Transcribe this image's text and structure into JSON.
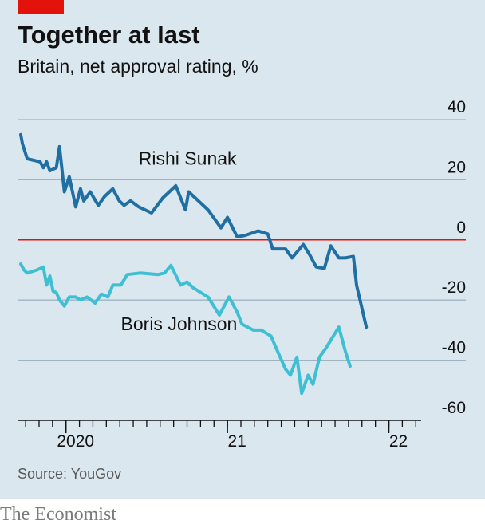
{
  "brand": {
    "accent_color": "#e3120b",
    "name": "The Economist"
  },
  "source": "Source: YouGov",
  "chart_data": {
    "type": "line",
    "title": "Together at last",
    "subtitle": "Britain, net approval rating, %",
    "xlabel": "",
    "ylabel": "",
    "ylim": [
      -60,
      40
    ],
    "yticks": [
      40,
      20,
      0,
      -20,
      -40,
      -60
    ],
    "xlim": [
      2019.7,
      2022.2
    ],
    "xticks": [
      {
        "x": 2020,
        "label": "2020"
      },
      {
        "x": 2021,
        "label": "21"
      },
      {
        "x": 2022,
        "label": "22"
      }
    ],
    "grid": true,
    "zero_line_color": "#e3120b",
    "series": [
      {
        "name": "Rishi Sunak",
        "color": "#1f6fa3",
        "points": [
          [
            2019.72,
            35
          ],
          [
            2019.73,
            32
          ],
          [
            2019.76,
            27
          ],
          [
            2019.84,
            26
          ],
          [
            2019.86,
            24
          ],
          [
            2019.88,
            26
          ],
          [
            2019.9,
            23
          ],
          [
            2019.92,
            23.5
          ],
          [
            2019.94,
            24
          ],
          [
            2019.96,
            31
          ],
          [
            2019.99,
            16
          ],
          [
            2020.02,
            21
          ],
          [
            2020.06,
            11
          ],
          [
            2020.09,
            17
          ],
          [
            2020.11,
            13
          ],
          [
            2020.15,
            16
          ],
          [
            2020.2,
            11.5
          ],
          [
            2020.24,
            14.5
          ],
          [
            2020.29,
            17
          ],
          [
            2020.33,
            13
          ],
          [
            2020.36,
            11.5
          ],
          [
            2020.4,
            13
          ],
          [
            2020.45,
            11
          ],
          [
            2020.53,
            9
          ],
          [
            2020.6,
            14
          ],
          [
            2020.68,
            18
          ],
          [
            2020.71,
            14
          ],
          [
            2020.74,
            10
          ],
          [
            2020.76,
            16
          ],
          [
            2020.8,
            14
          ],
          [
            2020.88,
            10
          ],
          [
            2020.96,
            4
          ],
          [
            2021.0,
            7.5
          ],
          [
            2021.06,
            1
          ],
          [
            2021.11,
            1.5
          ],
          [
            2021.19,
            3
          ],
          [
            2021.25,
            2
          ],
          [
            2021.28,
            -3
          ],
          [
            2021.36,
            -3
          ],
          [
            2021.4,
            -6
          ],
          [
            2021.47,
            -1.5
          ],
          [
            2021.51,
            -5
          ],
          [
            2021.55,
            -9
          ],
          [
            2021.6,
            -9.5
          ],
          [
            2021.64,
            -2
          ],
          [
            2021.69,
            -6
          ],
          [
            2021.73,
            -6
          ],
          [
            2021.78,
            -5.5
          ],
          [
            2021.8,
            -15
          ],
          [
            2021.86,
            -29
          ]
        ]
      },
      {
        "name": "Boris Johnson",
        "color": "#3ebfd4",
        "points": [
          [
            2019.72,
            -8
          ],
          [
            2019.74,
            -10
          ],
          [
            2019.76,
            -11
          ],
          [
            2019.82,
            -10
          ],
          [
            2019.86,
            -9
          ],
          [
            2019.88,
            -15
          ],
          [
            2019.9,
            -12
          ],
          [
            2019.92,
            -17
          ],
          [
            2019.94,
            -17.5
          ],
          [
            2019.96,
            -20
          ],
          [
            2019.99,
            -22
          ],
          [
            2020.02,
            -19
          ],
          [
            2020.06,
            -19
          ],
          [
            2020.09,
            -20
          ],
          [
            2020.13,
            -19
          ],
          [
            2020.18,
            -21
          ],
          [
            2020.22,
            -18
          ],
          [
            2020.26,
            -19
          ],
          [
            2020.29,
            -15
          ],
          [
            2020.34,
            -15
          ],
          [
            2020.38,
            -11.5
          ],
          [
            2020.46,
            -11
          ],
          [
            2020.57,
            -11.5
          ],
          [
            2020.61,
            -11
          ],
          [
            2020.65,
            -8.5
          ],
          [
            2020.71,
            -15
          ],
          [
            2020.75,
            -14
          ],
          [
            2020.79,
            -16
          ],
          [
            2020.88,
            -19
          ],
          [
            2020.95,
            -25
          ],
          [
            2021.01,
            -19
          ],
          [
            2021.06,
            -24
          ],
          [
            2021.09,
            -28
          ],
          [
            2021.16,
            -30
          ],
          [
            2021.21,
            -30
          ],
          [
            2021.27,
            -32
          ],
          [
            2021.31,
            -37
          ],
          [
            2021.36,
            -43
          ],
          [
            2021.39,
            -45
          ],
          [
            2021.43,
            -39
          ],
          [
            2021.46,
            -51
          ],
          [
            2021.5,
            -45
          ],
          [
            2021.53,
            -48
          ],
          [
            2021.57,
            -39
          ],
          [
            2021.61,
            -36
          ],
          [
            2021.69,
            -29
          ],
          [
            2021.73,
            -37
          ],
          [
            2021.76,
            -42
          ]
        ]
      }
    ],
    "annotations": [
      {
        "text": "Rishi Sunak",
        "x": 2020.45,
        "y": 25
      },
      {
        "text": "Boris Johnson",
        "x": 2020.34,
        "y": -30
      }
    ]
  }
}
